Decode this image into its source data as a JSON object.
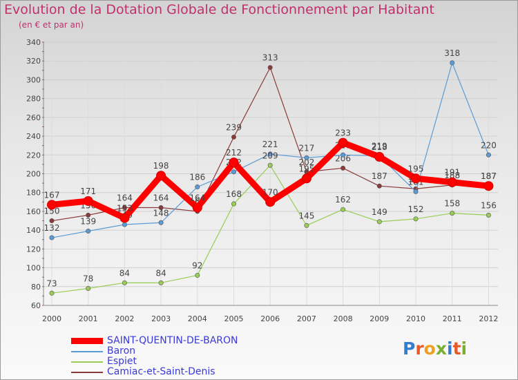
{
  "chart_data": {
    "type": "line",
    "title": "Evolution de la Dotation Globale de Fonctionnement par Habitant",
    "subtitle": "(en € et par an)",
    "x": [
      "2000",
      "2001",
      "2002",
      "2003",
      "2004",
      "2005",
      "2006",
      "2007",
      "2008",
      "2009",
      "2010",
      "2011",
      "2012"
    ],
    "ylim": [
      60,
      340
    ],
    "yticks": [
      "60",
      "80",
      "100",
      "120",
      "140",
      "160",
      "180",
      "200",
      "220",
      "240",
      "260",
      "280",
      "300",
      "320",
      "340"
    ],
    "grid": true,
    "legend_position": "bottom-left",
    "series": [
      {
        "name": "SAINT-QUENTIN-DE-BARON",
        "color": "#ff0000",
        "values": [
          167,
          171,
          153,
          198,
          164,
          212,
          170,
          195,
          233,
          218,
          195,
          191,
          187
        ]
      },
      {
        "name": "Baron",
        "color": "#5b9bd5",
        "values": [
          132,
          139,
          146,
          148,
          186,
          202,
          221,
          217,
          220,
          219,
          181,
          318,
          220
        ]
      },
      {
        "name": "Espiet",
        "color": "#99cc55",
        "values": [
          73,
          78,
          84,
          84,
          92,
          168,
          209,
          145,
          162,
          149,
          152,
          158,
          156
        ]
      },
      {
        "name": "Camiac-et-Saint-Denis",
        "color": "#8b3a3a",
        "values": [
          150,
          156,
          164,
          164,
          160,
          239,
          313,
          202,
          206,
          187,
          184,
          188,
          187
        ]
      }
    ]
  },
  "logo": {
    "text": "Proxiti"
  }
}
